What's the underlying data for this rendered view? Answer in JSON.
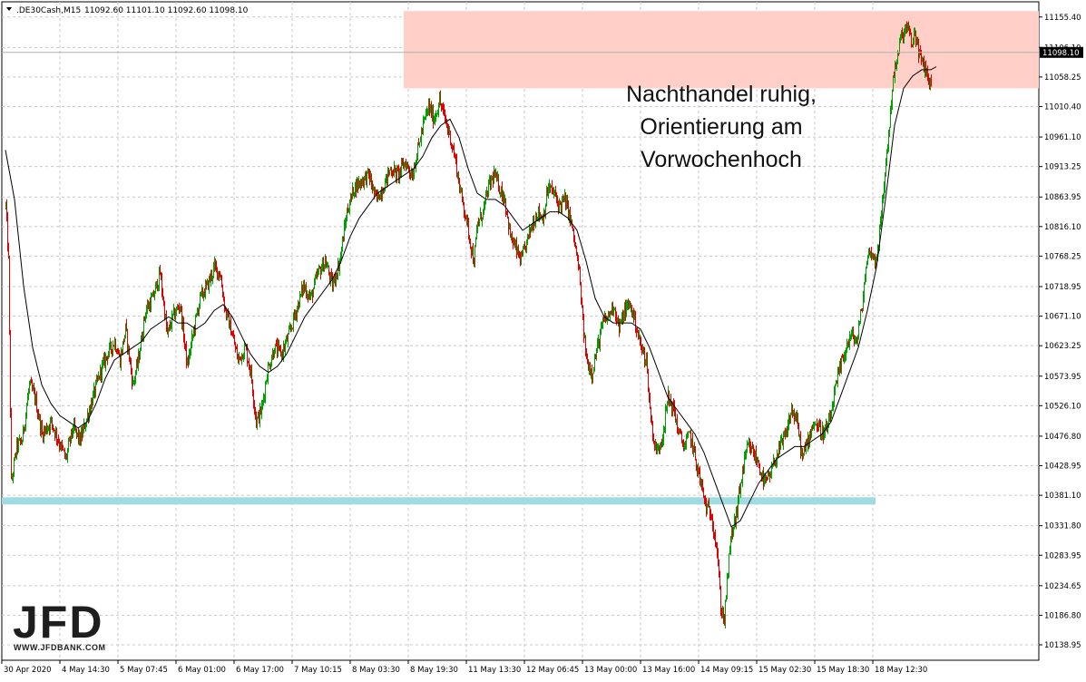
{
  "chart_data": {
    "type": "candlestick",
    "symbol_header": ".DE30Cash,M15",
    "ohlc_header": "11092.60 11101.10 11092.60 11098.10",
    "current_price_label": "11098.10",
    "current_price": 11098.1,
    "ylim": [
      10114.0,
      11180.0
    ],
    "y_ticks": [
      "11155.40",
      "11106.10",
      "11058.25",
      "11010.40",
      "10961.10",
      "10913.25",
      "10863.95",
      "10816.10",
      "10768.25",
      "10718.95",
      "10671.10",
      "10623.25",
      "10573.95",
      "10526.10",
      "10476.80",
      "10428.95",
      "10381.10",
      "10331.80",
      "10283.95",
      "10234.65",
      "10186.80",
      "10138.95"
    ],
    "x_ticks": [
      "30 Apr 2020",
      "4 May 14:30",
      "5 May 07:45",
      "6 May 01:00",
      "6 May 17:00",
      "7 May 10:15",
      "8 May 03:30",
      "8 May 19:30",
      "11 May 13:30",
      "12 May 06:45",
      "13 May 00:00",
      "13 May 16:00",
      "14 May 09:15",
      "15 May 02:30",
      "15 May 18:30",
      "18 May 12:30"
    ],
    "price_path": [
      [
        0,
        10850
      ],
      [
        3,
        10760
      ],
      [
        6,
        10400
      ],
      [
        12,
        10460
      ],
      [
        18,
        10470
      ],
      [
        26,
        10560
      ],
      [
        32,
        10540
      ],
      [
        40,
        10480
      ],
      [
        50,
        10500
      ],
      [
        58,
        10470
      ],
      [
        66,
        10440
      ],
      [
        74,
        10490
      ],
      [
        82,
        10470
      ],
      [
        88,
        10500
      ],
      [
        96,
        10540
      ],
      [
        104,
        10580
      ],
      [
        112,
        10610
      ],
      [
        120,
        10630
      ],
      [
        126,
        10600
      ],
      [
        132,
        10650
      ],
      [
        140,
        10560
      ],
      [
        146,
        10600
      ],
      [
        154,
        10680
      ],
      [
        162,
        10700
      ],
      [
        170,
        10740
      ],
      [
        178,
        10640
      ],
      [
        184,
        10670
      ],
      [
        192,
        10690
      ],
      [
        200,
        10590
      ],
      [
        206,
        10640
      ],
      [
        214,
        10700
      ],
      [
        222,
        10720
      ],
      [
        230,
        10750
      ],
      [
        236,
        10740
      ],
      [
        242,
        10680
      ],
      [
        248,
        10650
      ],
      [
        256,
        10600
      ],
      [
        264,
        10620
      ],
      [
        270,
        10580
      ],
      [
        276,
        10500
      ],
      [
        282,
        10520
      ],
      [
        288,
        10580
      ],
      [
        296,
        10620
      ],
      [
        304,
        10610
      ],
      [
        312,
        10640
      ],
      [
        320,
        10680
      ],
      [
        328,
        10720
      ],
      [
        336,
        10700
      ],
      [
        344,
        10740
      ],
      [
        352,
        10760
      ],
      [
        360,
        10720
      ],
      [
        368,
        10760
      ],
      [
        376,
        10840
      ],
      [
        384,
        10880
      ],
      [
        392,
        10890
      ],
      [
        400,
        10900
      ],
      [
        408,
        10860
      ],
      [
        416,
        10880
      ],
      [
        424,
        10910
      ],
      [
        432,
        10900
      ],
      [
        440,
        10920
      ],
      [
        448,
        10900
      ],
      [
        454,
        10940
      ],
      [
        460,
        10980
      ],
      [
        466,
        11010
      ],
      [
        472,
        10990
      ],
      [
        478,
        11020
      ],
      [
        484,
        10990
      ],
      [
        490,
        10960
      ],
      [
        496,
        10920
      ],
      [
        500,
        10880
      ],
      [
        506,
        10840
      ],
      [
        512,
        10790
      ],
      [
        516,
        10760
      ],
      [
        520,
        10820
      ],
      [
        526,
        10840
      ],
      [
        532,
        10880
      ],
      [
        538,
        10900
      ],
      [
        544,
        10880
      ],
      [
        550,
        10860
      ],
      [
        556,
        10800
      ],
      [
        562,
        10780
      ],
      [
        568,
        10760
      ],
      [
        574,
        10790
      ],
      [
        580,
        10820
      ],
      [
        586,
        10840
      ],
      [
        592,
        10830
      ],
      [
        598,
        10880
      ],
      [
        604,
        10870
      ],
      [
        610,
        10850
      ],
      [
        616,
        10860
      ],
      [
        622,
        10830
      ],
      [
        628,
        10780
      ],
      [
        632,
        10740
      ],
      [
        636,
        10660
      ],
      [
        640,
        10600
      ],
      [
        646,
        10580
      ],
      [
        652,
        10620
      ],
      [
        658,
        10660
      ],
      [
        664,
        10670
      ],
      [
        670,
        10690
      ],
      [
        676,
        10650
      ],
      [
        682,
        10680
      ],
      [
        688,
        10690
      ],
      [
        694,
        10660
      ],
      [
        700,
        10620
      ],
      [
        706,
        10600
      ],
      [
        710,
        10520
      ],
      [
        714,
        10470
      ],
      [
        718,
        10450
      ],
      [
        724,
        10480
      ],
      [
        730,
        10540
      ],
      [
        736,
        10520
      ],
      [
        742,
        10480
      ],
      [
        748,
        10460
      ],
      [
        754,
        10480
      ],
      [
        760,
        10440
      ],
      [
        766,
        10400
      ],
      [
        772,
        10360
      ],
      [
        778,
        10350
      ],
      [
        784,
        10290
      ],
      [
        788,
        10200
      ],
      [
        792,
        10180
      ],
      [
        796,
        10260
      ],
      [
        800,
        10320
      ],
      [
        804,
        10340
      ],
      [
        808,
        10380
      ],
      [
        812,
        10420
      ],
      [
        818,
        10460
      ],
      [
        824,
        10450
      ],
      [
        830,
        10430
      ],
      [
        836,
        10400
      ],
      [
        842,
        10410
      ],
      [
        848,
        10440
      ],
      [
        854,
        10460
      ],
      [
        860,
        10480
      ],
      [
        866,
        10520
      ],
      [
        872,
        10500
      ],
      [
        878,
        10440
      ],
      [
        884,
        10470
      ],
      [
        890,
        10500
      ],
      [
        896,
        10490
      ],
      [
        902,
        10480
      ],
      [
        908,
        10500
      ],
      [
        914,
        10550
      ],
      [
        920,
        10590
      ],
      [
        926,
        10620
      ],
      [
        932,
        10640
      ],
      [
        938,
        10630
      ],
      [
        944,
        10690
      ],
      [
        948,
        10750
      ],
      [
        952,
        10780
      ],
      [
        958,
        10760
      ],
      [
        962,
        10790
      ],
      [
        966,
        10850
      ],
      [
        970,
        10920
      ],
      [
        974,
        10980
      ],
      [
        978,
        11060
      ],
      [
        982,
        11080
      ],
      [
        986,
        11120
      ],
      [
        990,
        11130
      ],
      [
        994,
        11140
      ],
      [
        998,
        11110
      ],
      [
        1002,
        11130
      ],
      [
        1006,
        11100
      ],
      [
        1010,
        11080
      ],
      [
        1014,
        11070
      ],
      [
        1018,
        11050
      ],
      [
        1022,
        11040
      ],
      [
        1026,
        11098
      ]
    ],
    "moving_average_path": [
      [
        0,
        10940
      ],
      [
        10,
        10860
      ],
      [
        20,
        10720
      ],
      [
        30,
        10620
      ],
      [
        40,
        10560
      ],
      [
        50,
        10530
      ],
      [
        60,
        10510
      ],
      [
        70,
        10500
      ],
      [
        80,
        10490
      ],
      [
        90,
        10500
      ],
      [
        100,
        10530
      ],
      [
        110,
        10570
      ],
      [
        120,
        10600
      ],
      [
        130,
        10610
      ],
      [
        140,
        10620
      ],
      [
        150,
        10630
      ],
      [
        160,
        10650
      ],
      [
        170,
        10660
      ],
      [
        180,
        10670
      ],
      [
        190,
        10660
      ],
      [
        200,
        10660
      ],
      [
        210,
        10650
      ],
      [
        220,
        10660
      ],
      [
        230,
        10680
      ],
      [
        240,
        10690
      ],
      [
        250,
        10670
      ],
      [
        260,
        10640
      ],
      [
        270,
        10610
      ],
      [
        280,
        10590
      ],
      [
        290,
        10580
      ],
      [
        300,
        10590
      ],
      [
        310,
        10610
      ],
      [
        320,
        10640
      ],
      [
        330,
        10670
      ],
      [
        340,
        10690
      ],
      [
        350,
        10710
      ],
      [
        360,
        10730
      ],
      [
        370,
        10760
      ],
      [
        380,
        10800
      ],
      [
        390,
        10830
      ],
      [
        400,
        10850
      ],
      [
        410,
        10870
      ],
      [
        420,
        10880
      ],
      [
        430,
        10890
      ],
      [
        440,
        10900
      ],
      [
        450,
        10910
      ],
      [
        460,
        10930
      ],
      [
        470,
        10960
      ],
      [
        480,
        10980
      ],
      [
        490,
        10990
      ],
      [
        500,
        10960
      ],
      [
        510,
        10910
      ],
      [
        520,
        10870
      ],
      [
        530,
        10860
      ],
      [
        540,
        10860
      ],
      [
        550,
        10850
      ],
      [
        560,
        10830
      ],
      [
        570,
        10810
      ],
      [
        580,
        10820
      ],
      [
        590,
        10830
      ],
      [
        600,
        10840
      ],
      [
        610,
        10840
      ],
      [
        620,
        10830
      ],
      [
        630,
        10810
      ],
      [
        640,
        10760
      ],
      [
        650,
        10700
      ],
      [
        660,
        10670
      ],
      [
        670,
        10660
      ],
      [
        680,
        10660
      ],
      [
        690,
        10660
      ],
      [
        700,
        10650
      ],
      [
        710,
        10620
      ],
      [
        720,
        10580
      ],
      [
        730,
        10540
      ],
      [
        740,
        10520
      ],
      [
        750,
        10500
      ],
      [
        760,
        10480
      ],
      [
        770,
        10450
      ],
      [
        780,
        10410
      ],
      [
        790,
        10370
      ],
      [
        800,
        10330
      ],
      [
        810,
        10340
      ],
      [
        820,
        10370
      ],
      [
        830,
        10400
      ],
      [
        840,
        10420
      ],
      [
        850,
        10440
      ],
      [
        860,
        10450
      ],
      [
        870,
        10460
      ],
      [
        880,
        10460
      ],
      [
        890,
        10470
      ],
      [
        900,
        10480
      ],
      [
        910,
        10500
      ],
      [
        920,
        10540
      ],
      [
        930,
        10580
      ],
      [
        940,
        10620
      ],
      [
        950,
        10680
      ],
      [
        960,
        10750
      ],
      [
        970,
        10860
      ],
      [
        980,
        10980
      ],
      [
        990,
        11040
      ],
      [
        1000,
        11060
      ],
      [
        1010,
        11070
      ],
      [
        1020,
        11070
      ],
      [
        1026,
        11075
      ]
    ],
    "resistance_zone": {
      "x_start": 445,
      "x_end": 1145,
      "y_low": 11040,
      "y_high": 11165,
      "color": "#ffcfc8"
    },
    "support_line": {
      "x_start": 0,
      "x_end": 963,
      "y": 10372,
      "color": "#9fdbe0"
    },
    "annotation": [
      "Nachthandel ruhig,",
      "Orientierung am",
      "Vorwochenhoch"
    ],
    "colors": {
      "up_candle": "#00a000",
      "down_candle": "#e00000",
      "ma_line": "#000000",
      "grid": "#c8c8c8",
      "axis": "#000000"
    }
  },
  "header": {
    "dropdown_icon": "triangle-down-icon"
  },
  "logo": {
    "brand": "JFD",
    "url_text": "WWW.JFDBANK.COM"
  }
}
